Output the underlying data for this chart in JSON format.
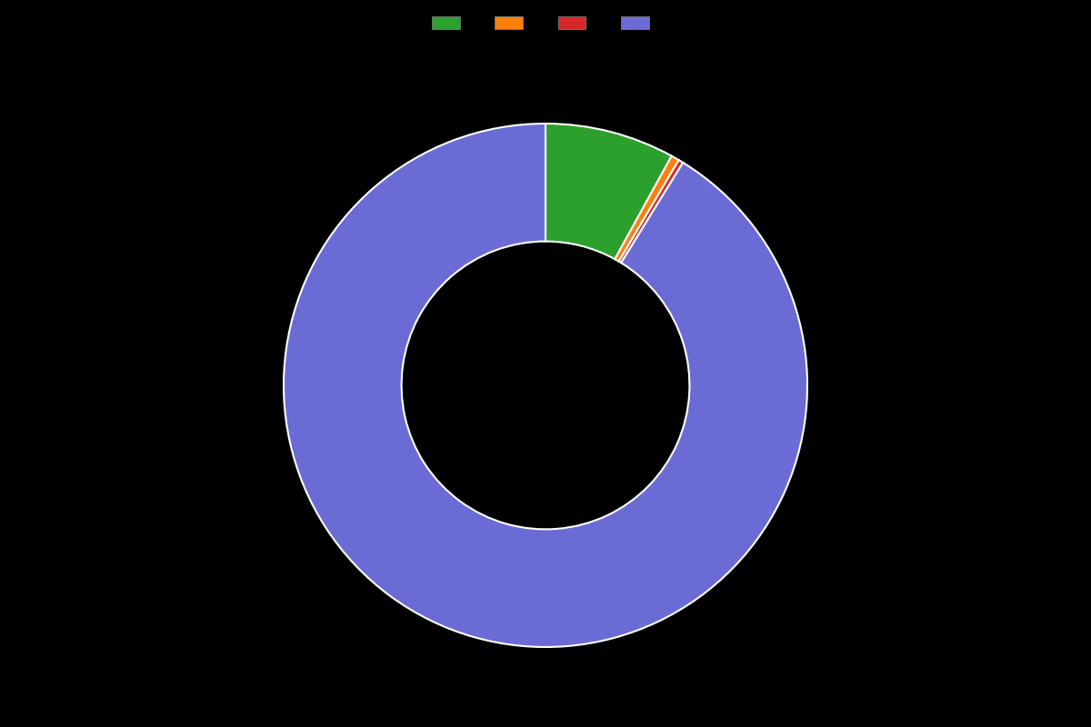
{
  "values": [
    8,
    0.5,
    0.3,
    91.2
  ],
  "colors": [
    "#2ca02c",
    "#ff7f0e",
    "#d62728",
    "#6b6bd6"
  ],
  "legend_labels": [
    "",
    "",
    "",
    ""
  ],
  "background_color": "#000000",
  "wedge_edge_color": "#ffffff",
  "wedge_edge_width": 1.5,
  "donut_width": 0.45,
  "start_angle": 90,
  "figsize": [
    12,
    8
  ],
  "dpi": 100
}
